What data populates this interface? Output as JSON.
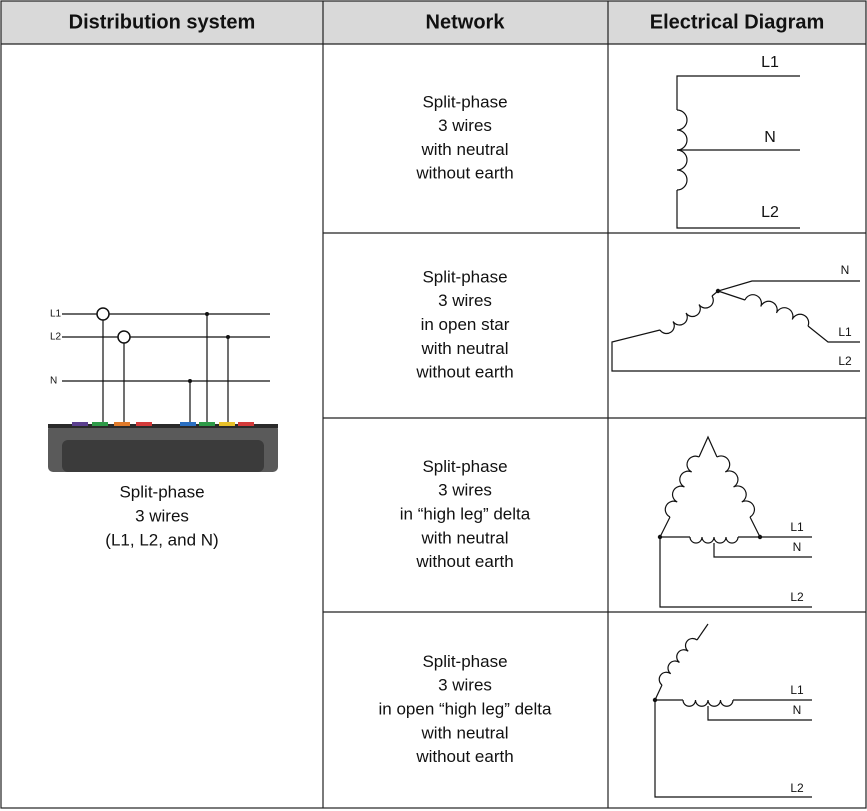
{
  "table": {
    "headers": [
      "Distribution system",
      "Network",
      "Electrical Diagram"
    ],
    "system": {
      "description": [
        "Split-phase",
        "3 wires",
        "(L1, L2, and N)"
      ],
      "diagram_labels": [
        "L1",
        "L2",
        "N"
      ]
    },
    "rows": [
      {
        "network": [
          "Split-phase",
          "3 wires",
          "with neutral",
          "without earth"
        ],
        "diagram_labels": [
          "L1",
          "N",
          "L2"
        ]
      },
      {
        "network": [
          "Split-phase",
          "3 wires",
          "in open star",
          "with neutral",
          "without earth"
        ],
        "diagram_labels": [
          "N",
          "L1",
          "L2"
        ]
      },
      {
        "network": [
          "Split-phase",
          "3 wires",
          "in “high leg” delta",
          "with neutral",
          "without earth"
        ],
        "diagram_labels": [
          "L1",
          "N",
          "L2"
        ]
      },
      {
        "network": [
          "Split-phase",
          "3 wires",
          "in open “high leg” delta",
          "with neutral",
          "without earth"
        ],
        "diagram_labels": [
          "L1",
          "N",
          "L2"
        ]
      }
    ]
  }
}
